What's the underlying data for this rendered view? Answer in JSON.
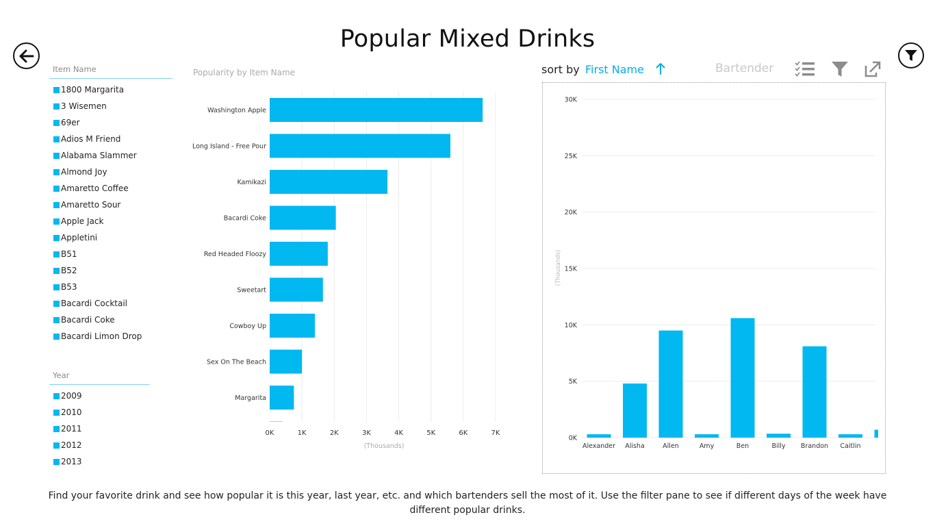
{
  "page": {
    "title": "Popular Mixed Drinks",
    "description": "Find your favorite drink and see how popular it is this year, last year, etc. and which bartenders sell the most of it.  Use the filter pane to see if different days of the week have different popular drinks."
  },
  "icons": {
    "back": "back-arrow-icon",
    "filter_pane": "filter-pane-icon",
    "sort_direction": "arrow-up-icon",
    "checklist": "checklist-icon",
    "filter": "filter-icon",
    "popout": "popout-icon"
  },
  "colors": {
    "accent": "#01b8f0",
    "sort_field": "#01aee6",
    "muted": "#aaaaaa",
    "slicer_line": "#7ad5ee"
  },
  "item_slicer": {
    "header": "Item Name",
    "items": [
      "1800 Margarita",
      "3 Wisemen",
      "69er",
      "Adios M Friend",
      "Alabama Slammer",
      "Almond Joy",
      "Amaretto Coffee",
      "Amaretto Sour",
      "Apple Jack",
      "Appletini",
      "B51",
      "B52",
      "B53",
      "Bacardi Cocktail",
      "Bacardi Coke",
      "Bacardi Limon Drop"
    ]
  },
  "year_slicer": {
    "header": "Year",
    "items": [
      "2009",
      "2010",
      "2011",
      "2012",
      "2013"
    ]
  },
  "toolbar": {
    "sort_label": "sort by",
    "sort_field": "First Name",
    "tile_field": "Bartender"
  },
  "chart_data": [
    {
      "type": "bar",
      "orientation": "horizontal",
      "title": "Popularity by Item Name",
      "categories": [
        "Washington Apple",
        "Long Island - Free Pour",
        "Kamikazi",
        "Bacardi Coke",
        "Red Headed Floozy",
        "Sweetart",
        "Cowboy Up",
        "Sex On The Beach",
        "Margarita",
        ""
      ],
      "values": [
        6.6,
        5.6,
        3.65,
        2.05,
        1.8,
        1.65,
        1.4,
        1.0,
        0.75,
        0.4
      ],
      "xlabel": "(Thousands)",
      "xlim": [
        0,
        7
      ],
      "x_ticks": [
        "0K",
        "1K",
        "2K",
        "3K",
        "4K",
        "5K",
        "6K",
        "7K"
      ],
      "grid": true
    },
    {
      "type": "bar",
      "orientation": "vertical",
      "title": "",
      "categories": [
        "Alexander",
        "Alisha",
        "Allen",
        "Amy",
        "Ben",
        "Billy",
        "Brandon",
        "Caitlin",
        ""
      ],
      "values": [
        0.3,
        4.8,
        9.5,
        0.3,
        10.6,
        0.35,
        8.1,
        0.3,
        0.7
      ],
      "ylabel": "(Thousands)",
      "ylim": [
        0,
        30
      ],
      "y_ticks": [
        "0K",
        "5K",
        "10K",
        "15K",
        "20K",
        "25K",
        "30K"
      ],
      "grid": true
    }
  ]
}
